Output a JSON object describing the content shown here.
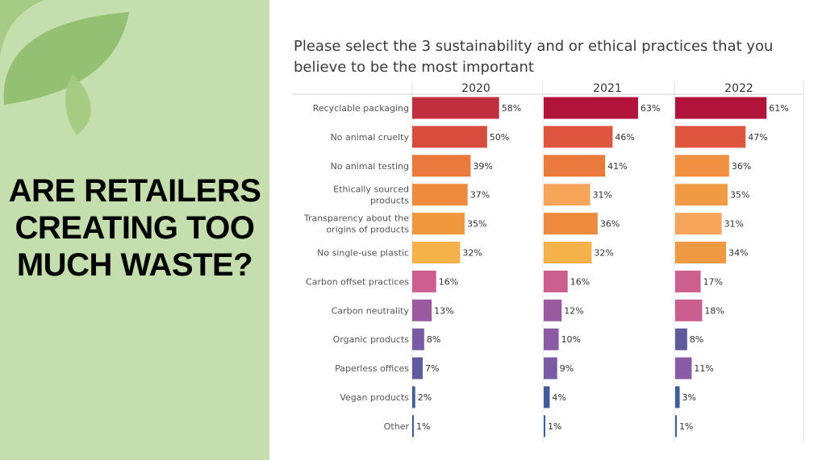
{
  "headline": {
    "lines": [
      "ARE RETAILERS",
      "CREATING TOO",
      "MUCH WASTE?"
    ]
  },
  "colors": {
    "left_panel": "#c4deae",
    "leaf": "#8fbd6a"
  },
  "chart_data": {
    "type": "bar",
    "orientation": "horizontal",
    "title": "Please select the 3 sustainability and or ethical practices that you believe to be the most important",
    "title_lines": [
      "Please select the 3 sustainability and or ethical practices that you",
      "believe to be the most important"
    ],
    "categories": [
      [
        "Recyclable packaging"
      ],
      [
        "No animal cruelty"
      ],
      [
        "No animal testing"
      ],
      [
        "Ethically sourced",
        "products"
      ],
      [
        "Transparency about the",
        "origins of products"
      ],
      [
        "No single-use plastic"
      ],
      [
        "Carbon offset practices"
      ],
      [
        "Carbon neutrality"
      ],
      [
        "Organic products"
      ],
      [
        "Paperless offices"
      ],
      [
        "Vegan products"
      ],
      [
        "Other"
      ]
    ],
    "value_suffix": "%",
    "xlim": [
      0,
      70
    ],
    "grid": false,
    "series": [
      {
        "name": "2020",
        "values": [
          58,
          50,
          39,
          37,
          35,
          32,
          16,
          13,
          8,
          7,
          2,
          1
        ],
        "colors": [
          "#c0303e",
          "#d84c3e",
          "#ea7a3b",
          "#ee8a3e",
          "#f0983e",
          "#f5b24a",
          "#cc5f8e",
          "#9b5aa0",
          "#7a5aa4",
          "#5f5c9e",
          "#3f5d9a",
          "#3d5f98"
        ]
      },
      {
        "name": "2021",
        "values": [
          63,
          46,
          41,
          31,
          36,
          32,
          16,
          12,
          10,
          9,
          4,
          1
        ],
        "colors": [
          "#b0143a",
          "#e0553e",
          "#ea7a3b",
          "#f8a55c",
          "#ee8a3e",
          "#f5b24a",
          "#cc5f8e",
          "#9b5aa0",
          "#8a5aa4",
          "#7a5aa4",
          "#3f5d9a",
          "#3d5f98"
        ]
      },
      {
        "name": "2022",
        "values": [
          61,
          47,
          36,
          35,
          31,
          34,
          17,
          18,
          8,
          11,
          3,
          1
        ],
        "colors": [
          "#b0143a",
          "#e0553e",
          "#f09040",
          "#f09b44",
          "#f8a55c",
          "#f09a44",
          "#cc5f8e",
          "#c85f8e",
          "#5f5c9e",
          "#8a5aa4",
          "#3f5d9a",
          "#3d5f98"
        ]
      }
    ]
  }
}
